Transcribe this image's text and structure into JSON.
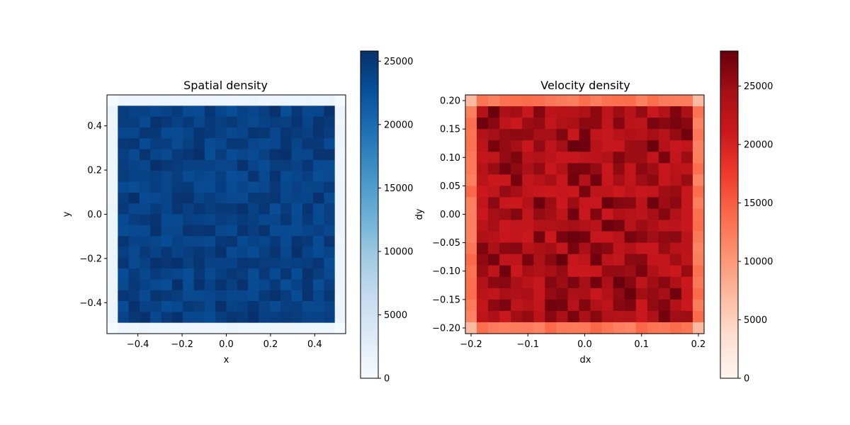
{
  "chart_data": [
    {
      "type": "heatmap",
      "title": "Spatial density",
      "xlabel": "x",
      "ylabel": "y",
      "colormap": "Blues",
      "xlim": [
        -0.54,
        0.54
      ],
      "ylim": [
        -0.54,
        0.54
      ],
      "xticks": [
        -0.4,
        -0.2,
        0.0,
        0.2,
        0.4
      ],
      "xtick_labels": [
        "−0.4",
        "−0.2",
        "0.0",
        "0.2",
        "0.4"
      ],
      "yticks": [
        -0.4,
        -0.2,
        0.0,
        0.2,
        0.4
      ],
      "ytick_labels": [
        "−0.4",
        "−0.2",
        "0.0",
        "0.2",
        "0.4"
      ],
      "bins": 22,
      "bin_edge_low": -0.54,
      "bin_edge_high": 0.54,
      "edge_bin_value": 1300,
      "corner_bin_value": 70,
      "interior_value_approx": 24500,
      "interior_value_range": [
        23000,
        25800
      ],
      "colorbar": {
        "vmin": 0,
        "vmax": 25800,
        "ticks": [
          0,
          5000,
          10000,
          15000,
          20000,
          25000
        ],
        "tick_labels": [
          "0",
          "5000",
          "10000",
          "15000",
          "20000",
          "25000"
        ]
      },
      "colors": {
        "low": "#f7fbff",
        "mid": "#6baed6",
        "high": "#08306b"
      }
    },
    {
      "type": "heatmap",
      "title": "Velocity density",
      "xlabel": "dx",
      "ylabel": "dy",
      "colormap": "Reds",
      "xlim": [
        -0.21,
        0.21
      ],
      "ylim": [
        -0.21,
        0.21
      ],
      "xticks": [
        -0.2,
        -0.1,
        0.0,
        0.1,
        0.2
      ],
      "xtick_labels": [
        "−0.2",
        "−0.1",
        "0.0",
        "0.1",
        "0.2"
      ],
      "yticks": [
        -0.2,
        -0.15,
        -0.1,
        -0.05,
        0.0,
        0.05,
        0.1,
        0.15,
        0.2
      ],
      "ytick_labels": [
        "−0.20",
        "−0.15",
        "−0.10",
        "−0.05",
        "0.00",
        "0.05",
        "0.10",
        "0.15",
        "0.20"
      ],
      "bins": 21,
      "bin_edge_low": -0.21,
      "bin_edge_high": 0.21,
      "edge_bin_value": 13000,
      "corner_bin_value": 7000,
      "interior_value_approx": 23500,
      "interior_value_range": [
        21000,
        28000
      ],
      "colorbar": {
        "vmin": 0,
        "vmax": 28000,
        "ticks": [
          0,
          5000,
          10000,
          15000,
          20000,
          25000
        ],
        "tick_labels": [
          "0",
          "5000",
          "10000",
          "15000",
          "20000",
          "25000"
        ]
      },
      "colors": {
        "low": "#fff5f0",
        "mid": "#fb6a4a",
        "high": "#67000d"
      }
    }
  ]
}
